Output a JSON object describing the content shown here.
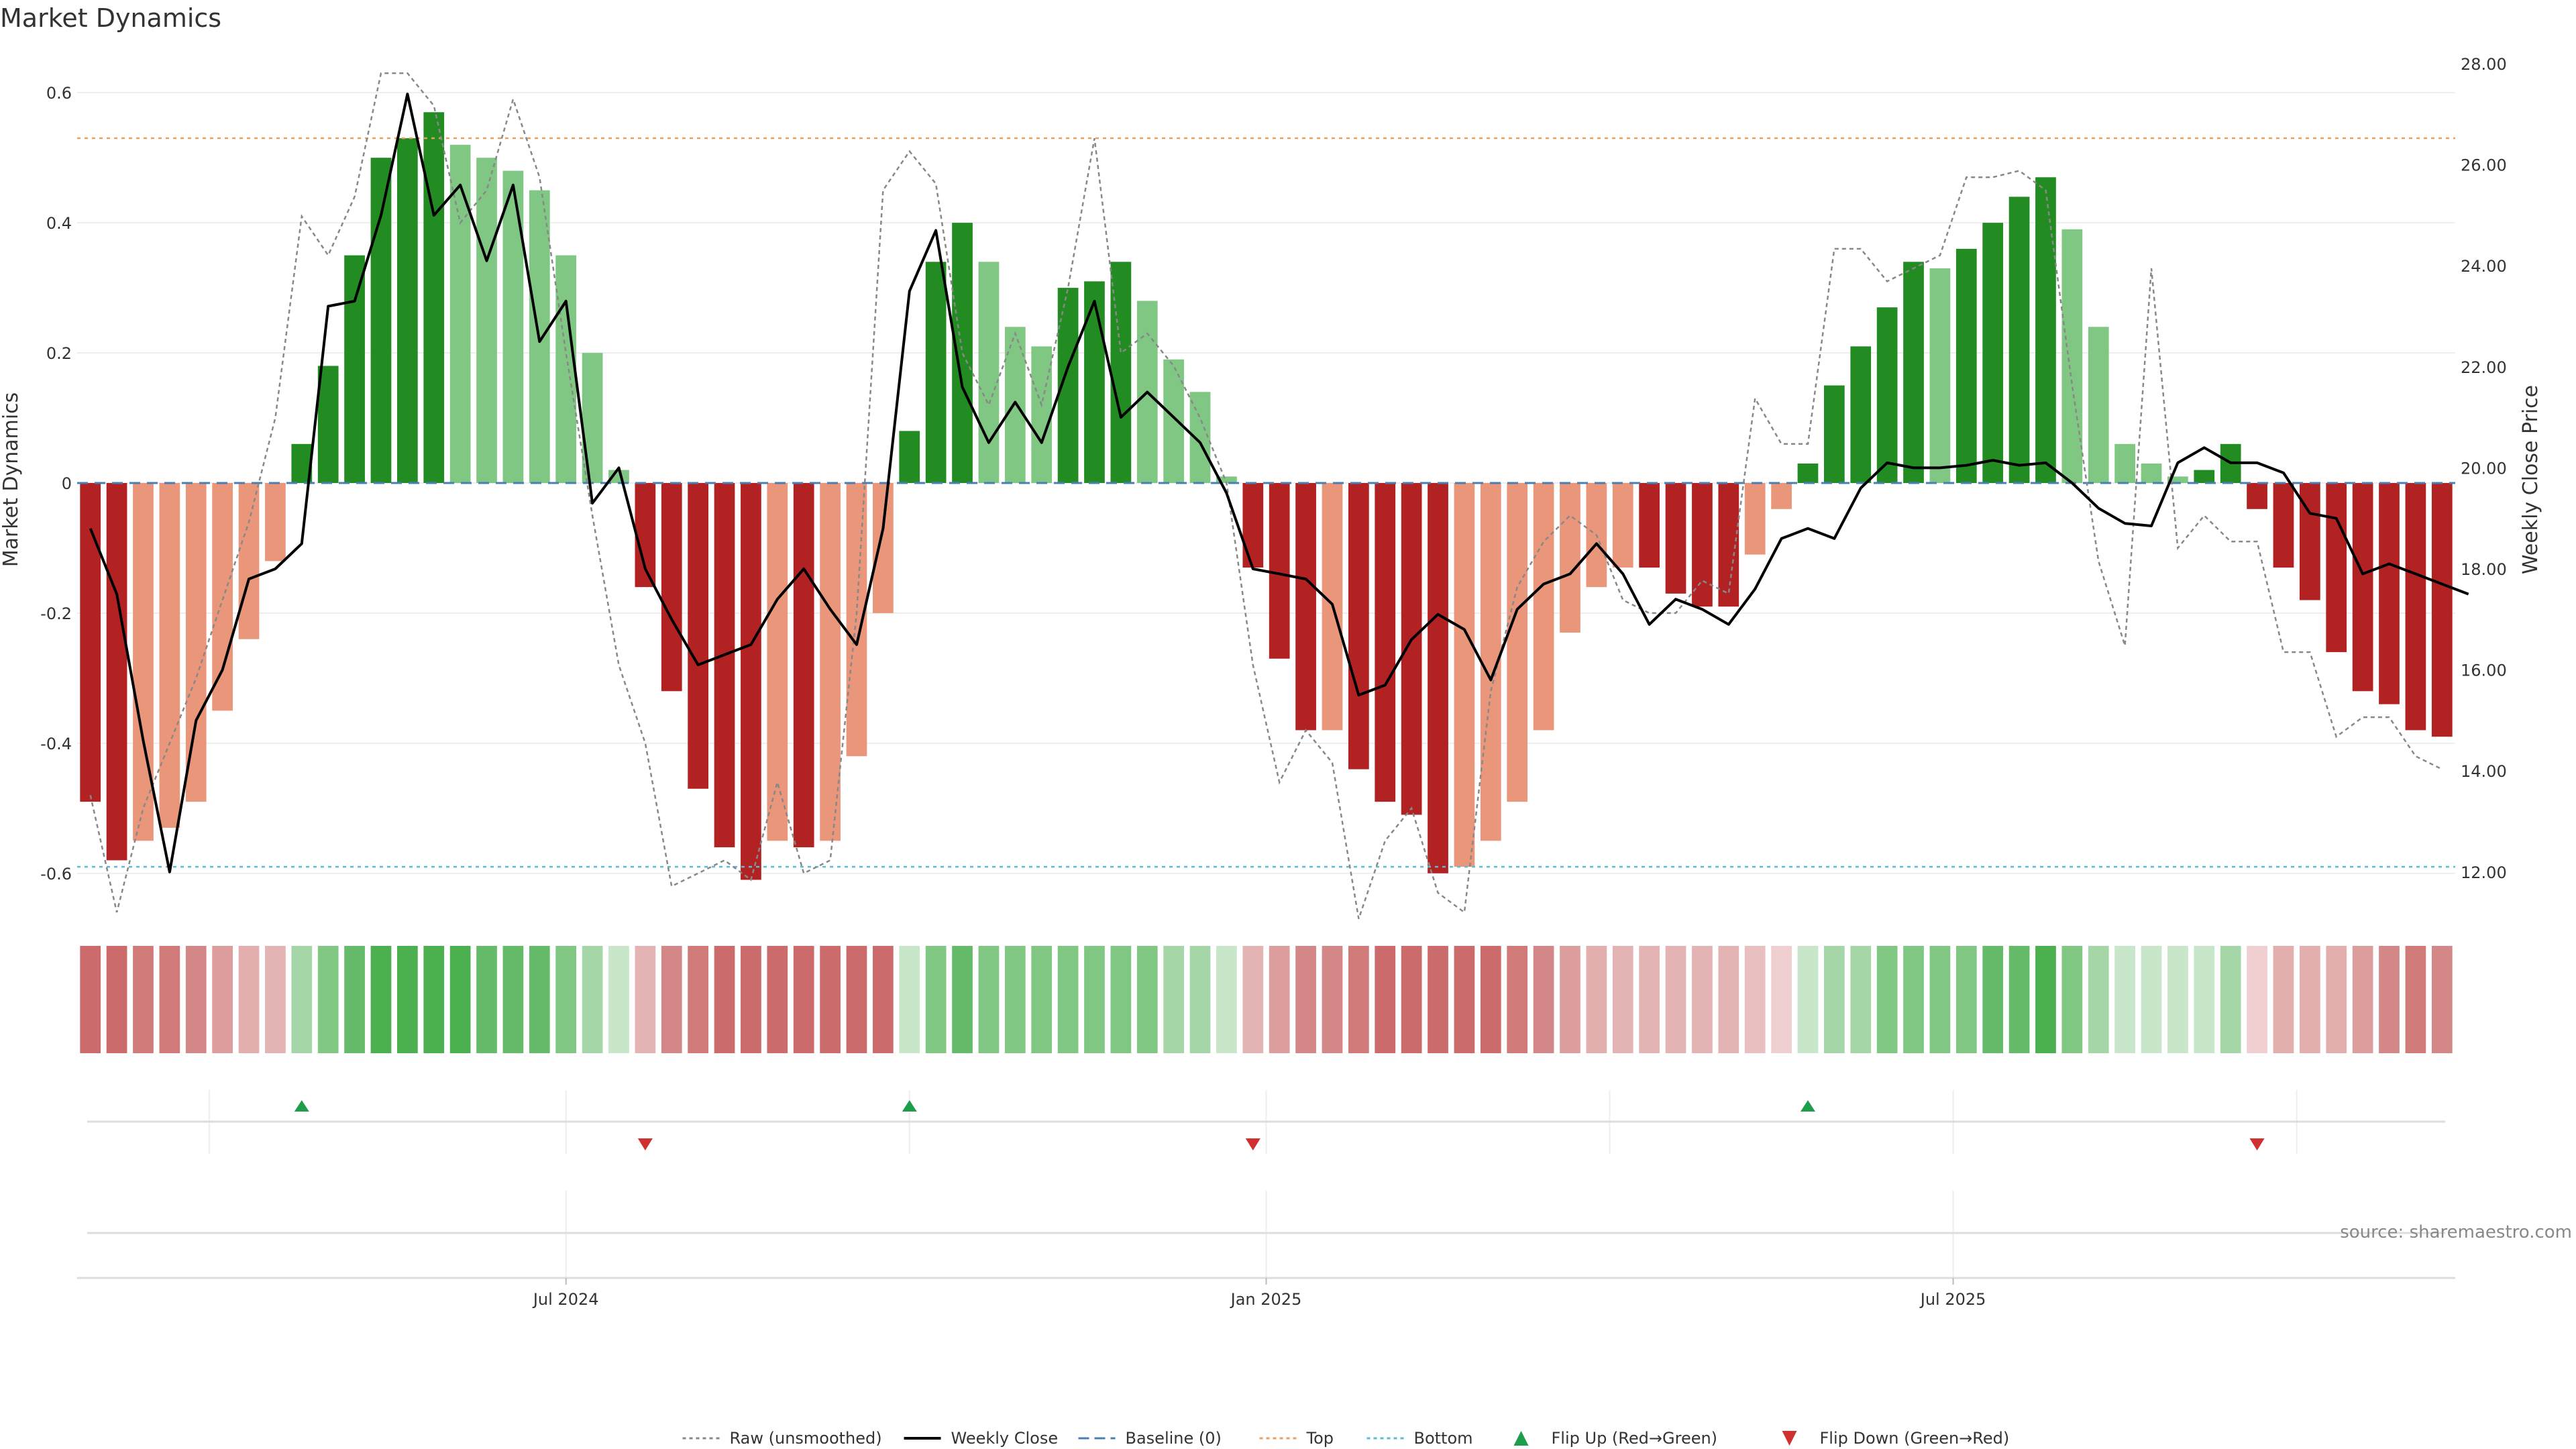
{
  "title": "Market Dynamics",
  "source": "source: sharemaestro.com",
  "chart_data": {
    "type": "bar",
    "ylabel": "Market Dynamics",
    "y2label": "Weekly Close Price",
    "ylim": [
      -0.66,
      0.66
    ],
    "y2lim": [
      11.2,
      28.2
    ],
    "y_ticks": [
      "0.6",
      "0.4",
      "0.2",
      "0",
      "-0.2",
      "-0.4",
      "-0.6"
    ],
    "y2_ticks": [
      "28.00",
      "26.00",
      "24.00",
      "22.00",
      "20.00",
      "18.00",
      "16.00",
      "14.00",
      "12.00"
    ],
    "x_ticks": [
      {
        "label": "Jul 2024",
        "week": 18.5
      },
      {
        "label": "Jan 2025",
        "week": 45
      },
      {
        "label": "Jul 2025",
        "week": 71
      }
    ],
    "top_threshold": 0.53,
    "bottom_threshold": -0.59,
    "baseline": 0,
    "bars": [
      -0.49,
      -0.58,
      -0.55,
      -0.53,
      -0.49,
      -0.35,
      -0.24,
      -0.12,
      0.06,
      0.18,
      0.35,
      0.5,
      0.53,
      0.57,
      0.52,
      0.5,
      0.48,
      0.45,
      0.35,
      0.2,
      0.02,
      -0.16,
      -0.32,
      -0.47,
      -0.56,
      -0.61,
      -0.55,
      -0.56,
      -0.55,
      -0.42,
      -0.2,
      0.08,
      0.34,
      0.4,
      0.34,
      0.24,
      0.21,
      0.3,
      0.31,
      0.34,
      0.28,
      0.19,
      0.14,
      0.01,
      -0.13,
      -0.27,
      -0.38,
      -0.38,
      -0.44,
      -0.49,
      -0.51,
      -0.6,
      -0.59,
      -0.55,
      -0.49,
      -0.38,
      -0.23,
      -0.16,
      -0.13,
      -0.13,
      -0.17,
      -0.19,
      -0.19,
      -0.11,
      -0.04,
      0.03,
      0.15,
      0.21,
      0.27,
      0.34,
      0.33,
      0.36,
      0.4,
      0.44,
      0.47,
      0.39,
      0.24,
      0.06,
      0.03,
      0.01,
      0.02,
      0.06,
      -0.04,
      -0.13,
      -0.18,
      -0.26,
      -0.32,
      -0.34,
      -0.38,
      -0.39
    ],
    "bar_colors": [
      "#b22222",
      "#b22222",
      "#e9967a",
      "#e9967a",
      "#e9967a",
      "#e9967a",
      "#e9967a",
      "#e9967a",
      "#228b22",
      "#228b22",
      "#228b22",
      "#228b22",
      "#228b22",
      "#228b22",
      "#81c784",
      "#81c784",
      "#81c784",
      "#81c784",
      "#81c784",
      "#81c784",
      "#81c784",
      "#b22222",
      "#b22222",
      "#b22222",
      "#b22222",
      "#b22222",
      "#e9967a",
      "#b22222",
      "#e9967a",
      "#e9967a",
      "#e9967a",
      "#228b22",
      "#228b22",
      "#228b22",
      "#81c784",
      "#81c784",
      "#81c784",
      "#228b22",
      "#228b22",
      "#228b22",
      "#81c784",
      "#81c784",
      "#81c784",
      "#81c784",
      "#b22222",
      "#b22222",
      "#b22222",
      "#e9967a",
      "#b22222",
      "#b22222",
      "#b22222",
      "#b22222",
      "#e9967a",
      "#e9967a",
      "#e9967a",
      "#e9967a",
      "#e9967a",
      "#e9967a",
      "#e9967a",
      "#b22222",
      "#b22222",
      "#b22222",
      "#b22222",
      "#e9967a",
      "#e9967a",
      "#228b22",
      "#228b22",
      "#228b22",
      "#228b22",
      "#228b22",
      "#81c784",
      "#228b22",
      "#228b22",
      "#228b22",
      "#228b22",
      "#81c784",
      "#81c784",
      "#81c784",
      "#81c784",
      "#81c784",
      "#228b22",
      "#228b22",
      "#b22222",
      "#b22222",
      "#b22222",
      "#b22222",
      "#b22222",
      "#b22222",
      "#b22222",
      "#b22222"
    ],
    "raw_unsmoothed": [
      -0.48,
      -0.66,
      -0.5,
      -0.4,
      -0.3,
      -0.18,
      -0.06,
      0.1,
      0.41,
      0.35,
      0.44,
      0.63,
      0.63,
      0.58,
      0.4,
      0.45,
      0.59,
      0.47,
      0.2,
      -0.05,
      -0.28,
      -0.4,
      -0.62,
      -0.6,
      -0.58,
      -0.61,
      -0.46,
      -0.6,
      -0.58,
      -0.2,
      0.45,
      0.51,
      0.46,
      0.2,
      0.12,
      0.23,
      0.12,
      0.3,
      0.53,
      0.2,
      0.23,
      0.18,
      0.1,
      0.0,
      -0.28,
      -0.46,
      -0.38,
      -0.43,
      -0.67,
      -0.55,
      -0.5,
      -0.63,
      -0.66,
      -0.32,
      -0.16,
      -0.09,
      -0.05,
      -0.08,
      -0.18,
      -0.2,
      -0.2,
      -0.15,
      -0.17,
      0.13,
      0.06,
      0.06,
      0.36,
      0.36,
      0.31,
      0.33,
      0.35,
      0.47,
      0.47,
      0.48,
      0.45,
      0.15,
      -0.12,
      -0.25,
      0.33,
      -0.1,
      -0.05,
      -0.09,
      -0.09,
      -0.26,
      -0.26,
      -0.39,
      -0.36,
      -0.36,
      -0.42,
      -0.44
    ],
    "weekly_close": [
      18.8,
      17.5,
      14.6,
      12.0,
      15.0,
      16.0,
      17.8,
      18.0,
      18.5,
      23.2,
      23.3,
      25.0,
      27.4,
      25.0,
      25.6,
      24.1,
      25.6,
      22.5,
      23.3,
      19.3,
      20.0,
      18.0,
      17.0,
      16.1,
      16.3,
      16.5,
      17.4,
      18.0,
      17.2,
      16.5,
      18.8,
      23.5,
      24.7,
      21.6,
      20.5,
      21.3,
      20.5,
      22.0,
      23.3,
      21.0,
      21.5,
      21.0,
      20.5,
      19.5,
      18.0,
      17.9,
      17.8,
      17.3,
      15.5,
      15.7,
      16.6,
      17.1,
      16.8,
      15.8,
      17.2,
      17.7,
      17.9,
      18.5,
      17.9,
      16.9,
      17.4,
      17.2,
      16.9,
      17.6,
      18.6,
      18.8,
      18.6,
      19.6,
      20.1,
      20.0,
      20.0,
      20.05,
      20.15,
      20.05,
      20.1,
      19.7,
      19.2,
      18.9,
      18.85,
      20.1,
      20.4,
      20.1,
      20.1,
      19.9,
      19.1,
      19.0,
      17.9,
      18.1,
      17.9,
      17.7,
      17.5
    ],
    "strip_colors": [
      "#cb6b6b",
      "#cb6b6b",
      "#d07a7a",
      "#d07a7a",
      "#d48787",
      "#dc9d9d",
      "#e2aeae",
      "#e4b4b4",
      "#a5d6a7",
      "#81c784",
      "#66bb6a",
      "#4caf50",
      "#4caf50",
      "#4caf50",
      "#4caf50",
      "#66bb6a",
      "#66bb6a",
      "#66bb6a",
      "#81c784",
      "#a5d6a7",
      "#c8e6c9",
      "#e4b4b4",
      "#d48787",
      "#d07a7a",
      "#cb6b6b",
      "#cb6b6b",
      "#cb6b6b",
      "#cb6b6b",
      "#cb6b6b",
      "#cb6b6b",
      "#cb6b6b",
      "#c8e6c9",
      "#81c784",
      "#66bb6a",
      "#81c784",
      "#81c784",
      "#81c784",
      "#81c784",
      "#81c784",
      "#81c784",
      "#81c784",
      "#a5d6a7",
      "#a5d6a7",
      "#c8e6c9",
      "#e4b4b4",
      "#dc9d9d",
      "#d48787",
      "#d48787",
      "#d07a7a",
      "#cb6b6b",
      "#cb6b6b",
      "#cb6b6b",
      "#cb6b6b",
      "#cb6b6b",
      "#d07a7a",
      "#d48787",
      "#dc9d9d",
      "#e2aeae",
      "#e4b4b4",
      "#e4b4b4",
      "#e4b4b4",
      "#e4b4b4",
      "#e4b4b4",
      "#e8c0c0",
      "#efcfcf",
      "#c8e6c9",
      "#a5d6a7",
      "#a5d6a7",
      "#81c784",
      "#81c784",
      "#81c784",
      "#81c784",
      "#66bb6a",
      "#66bb6a",
      "#4caf50",
      "#81c784",
      "#a5d6a7",
      "#c8e6c9",
      "#c8e6c9",
      "#c8e6c9",
      "#c8e6c9",
      "#a5d6a7",
      "#efcfcf",
      "#e2aeae",
      "#e2aeae",
      "#e2aeae",
      "#dc9d9d",
      "#d48787",
      "#d07a7a",
      "#d48787"
    ],
    "flip_up_weeks": [
      8,
      31,
      65
    ],
    "flip_down_weeks": [
      21,
      44,
      82
    ],
    "legend": [
      {
        "label": "Raw (unsmoothed)",
        "style": "dotted",
        "color": "#888888"
      },
      {
        "label": "Weekly Close",
        "style": "solid",
        "color": "#000000"
      },
      {
        "label": "Baseline (0)",
        "style": "dashed",
        "color": "#4a7fb5"
      },
      {
        "label": "Top",
        "style": "dotted",
        "color": "#e8a060"
      },
      {
        "label": "Bottom",
        "style": "dotted",
        "color": "#5bbcd6"
      },
      {
        "label": "Flip Up (Red→Green)",
        "style": "triangle-up",
        "color": "#1e9e4a"
      },
      {
        "label": "Flip Down (Green→Red)",
        "style": "triangle-down",
        "color": "#d03030"
      }
    ]
  }
}
